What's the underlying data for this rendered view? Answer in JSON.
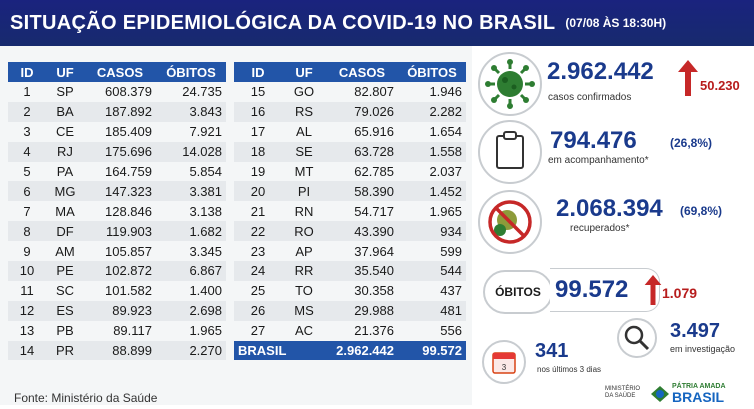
{
  "header": {
    "title": "SITUAÇÃO EPIDEMIOLÓGICA DA COVID-19 NO BRASIL",
    "date": "(07/08 ÀS 18:30H)"
  },
  "table_headers": {
    "id": "ID",
    "uf": "UF",
    "casos": "CASOS",
    "obitos": "ÓBITOS"
  },
  "table_left": [
    {
      "id": "1",
      "uf": "SP",
      "casos": "608.379",
      "obitos": "24.735"
    },
    {
      "id": "2",
      "uf": "BA",
      "casos": "187.892",
      "obitos": "3.843"
    },
    {
      "id": "3",
      "uf": "CE",
      "casos": "185.409",
      "obitos": "7.921"
    },
    {
      "id": "4",
      "uf": "RJ",
      "casos": "175.696",
      "obitos": "14.028"
    },
    {
      "id": "5",
      "uf": "PA",
      "casos": "164.759",
      "obitos": "5.854"
    },
    {
      "id": "6",
      "uf": "MG",
      "casos": "147.323",
      "obitos": "3.381"
    },
    {
      "id": "7",
      "uf": "MA",
      "casos": "128.846",
      "obitos": "3.138"
    },
    {
      "id": "8",
      "uf": "DF",
      "casos": "119.903",
      "obitos": "1.682"
    },
    {
      "id": "9",
      "uf": "AM",
      "casos": "105.857",
      "obitos": "3.345"
    },
    {
      "id": "10",
      "uf": "PE",
      "casos": "102.872",
      "obitos": "6.867"
    },
    {
      "id": "11",
      "uf": "SC",
      "casos": "101.582",
      "obitos": "1.400"
    },
    {
      "id": "12",
      "uf": "ES",
      "casos": "89.923",
      "obitos": "2.698"
    },
    {
      "id": "13",
      "uf": "PB",
      "casos": "89.117",
      "obitos": "1.965"
    },
    {
      "id": "14",
      "uf": "PR",
      "casos": "88.899",
      "obitos": "2.270"
    }
  ],
  "table_right": [
    {
      "id": "15",
      "uf": "GO",
      "casos": "82.807",
      "obitos": "1.946"
    },
    {
      "id": "16",
      "uf": "RS",
      "casos": "79.026",
      "obitos": "2.282"
    },
    {
      "id": "17",
      "uf": "AL",
      "casos": "65.916",
      "obitos": "1.654"
    },
    {
      "id": "18",
      "uf": "SE",
      "casos": "63.728",
      "obitos": "1.558"
    },
    {
      "id": "19",
      "uf": "MT",
      "casos": "62.785",
      "obitos": "2.037"
    },
    {
      "id": "20",
      "uf": "PI",
      "casos": "58.390",
      "obitos": "1.452"
    },
    {
      "id": "21",
      "uf": "RN",
      "casos": "54.717",
      "obitos": "1.965"
    },
    {
      "id": "22",
      "uf": "RO",
      "casos": "43.390",
      "obitos": "934"
    },
    {
      "id": "23",
      "uf": "AP",
      "casos": "37.964",
      "obitos": "599"
    },
    {
      "id": "24",
      "uf": "RR",
      "casos": "35.540",
      "obitos": "544"
    },
    {
      "id": "25",
      "uf": "TO",
      "casos": "30.358",
      "obitos": "437"
    },
    {
      "id": "26",
      "uf": "MS",
      "casos": "29.988",
      "obitos": "481"
    },
    {
      "id": "27",
      "uf": "AC",
      "casos": "21.376",
      "obitos": "556"
    }
  ],
  "brasil_row": {
    "label": "BRASIL",
    "casos": "2.962.442",
    "obitos": "99.572"
  },
  "source": "Fonte: Ministério da Saúde",
  "stats": {
    "confirmados": {
      "value": "2.962.442",
      "increase": "50.230",
      "label": "casos confirmados"
    },
    "acompanhamento": {
      "value": "794.476",
      "pct": "(26,8%)",
      "label": "em acompanhamento*"
    },
    "recuperados": {
      "value": "2.068.394",
      "pct": "(69,8%)",
      "label": "recuperados*"
    },
    "obitos": {
      "label": "ÓBITOS",
      "value": "99.572",
      "increase": "1.079"
    },
    "investigacao": {
      "value": "3.497",
      "label": "em investigação"
    },
    "ultimos": {
      "value": "341",
      "label": "nos últimos 3 dias",
      "calendar_day": "3"
    }
  },
  "footer_logos": {
    "ministerio": "MINISTÉRIO DA SAÚDE",
    "slogan": "PÁTRIA AMADA",
    "brasil": "BRASIL"
  },
  "colors": {
    "header_bg": "#1a237e",
    "table_header": "#2255a8",
    "accent_red": "#c62828",
    "value_blue": "#1a3a8c"
  }
}
